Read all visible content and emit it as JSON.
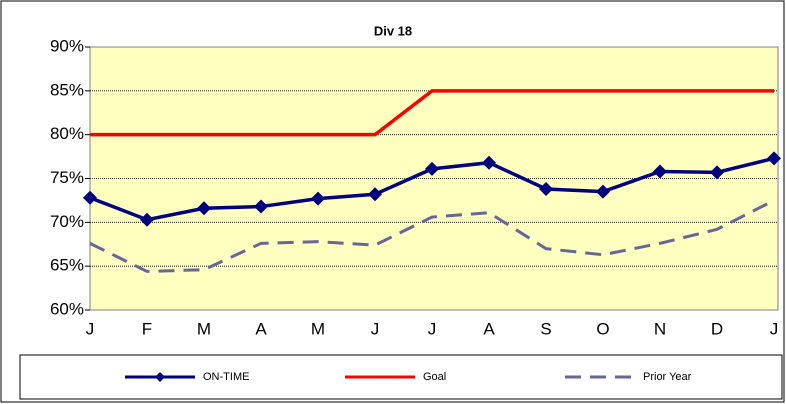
{
  "chart_data": {
    "type": "line",
    "title": "Div 18",
    "categories": [
      "J",
      "F",
      "M",
      "A",
      "M",
      "J",
      "J",
      "A",
      "S",
      "O",
      "N",
      "D",
      "J"
    ],
    "series": [
      {
        "name": "ON-TIME",
        "color": "#000080",
        "marker": "diamond",
        "dash": false,
        "values": [
          72.8,
          70.3,
          71.6,
          71.8,
          72.7,
          73.2,
          76.1,
          76.8,
          73.8,
          73.5,
          75.8,
          75.7,
          77.3
        ]
      },
      {
        "name": "Goal",
        "color": "#ff0000",
        "dash": false,
        "values": [
          80,
          80,
          80,
          80,
          80,
          80,
          85,
          85,
          85,
          85,
          85,
          85,
          85
        ]
      },
      {
        "name": "Prior Year",
        "color": "#666699",
        "dash": true,
        "values": [
          67.6,
          64.4,
          64.6,
          67.6,
          67.8,
          67.4,
          70.6,
          71.1,
          67.0,
          66.3,
          67.6,
          69.2,
          72.5
        ]
      }
    ],
    "ylim": [
      60,
      90
    ],
    "yticks": [
      {
        "value": 60,
        "label": "60%"
      },
      {
        "value": 65,
        "label": "65%"
      },
      {
        "value": 70,
        "label": "70%"
      },
      {
        "value": 75,
        "label": "75%"
      },
      {
        "value": 80,
        "label": "80%"
      },
      {
        "value": 85,
        "label": "85%"
      },
      {
        "value": 90,
        "label": "90%"
      }
    ],
    "grid": true,
    "legend": "bottom"
  }
}
